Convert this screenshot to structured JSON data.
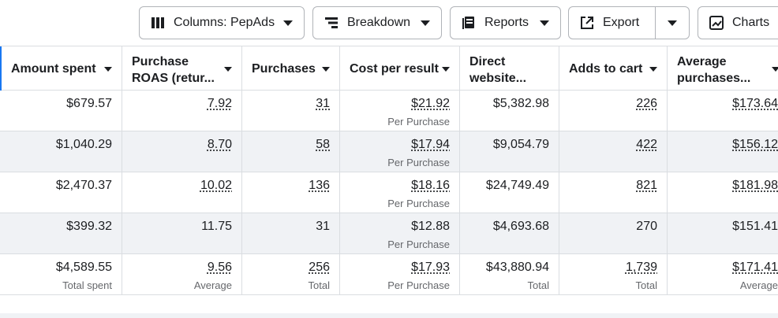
{
  "toolbar": {
    "columns_label": "Columns: PepAds",
    "breakdown_label": "Breakdown",
    "reports_label": "Reports",
    "export_label": "Export",
    "charts_label": "Charts"
  },
  "table": {
    "headers": [
      {
        "line1": "Amount spent",
        "line2": ""
      },
      {
        "line1": "Purchase",
        "line2": "ROAS (retur..."
      },
      {
        "line1": "Purchases",
        "line2": ""
      },
      {
        "line1": "Cost per result",
        "line2": ""
      },
      {
        "line1": "Direct",
        "line2": "website..."
      },
      {
        "line1": "Adds to cart",
        "line2": ""
      },
      {
        "line1": "Average",
        "line2": "purchases..."
      }
    ],
    "rows": [
      {
        "cells": [
          {
            "v": "$679.57",
            "sub": ""
          },
          {
            "v": "7.92",
            "sub": ""
          },
          {
            "v": "31",
            "sub": ""
          },
          {
            "v": "$21.92",
            "sub": "Per Purchase"
          },
          {
            "v": "$5,382.98",
            "sub": ""
          },
          {
            "v": "226",
            "sub": ""
          },
          {
            "v": "$173.64",
            "sub": ""
          }
        ]
      },
      {
        "cells": [
          {
            "v": "$1,040.29",
            "sub": ""
          },
          {
            "v": "8.70",
            "sub": ""
          },
          {
            "v": "58",
            "sub": ""
          },
          {
            "v": "$17.94",
            "sub": "Per Purchase"
          },
          {
            "v": "$9,054.79",
            "sub": ""
          },
          {
            "v": "422",
            "sub": ""
          },
          {
            "v": "$156.12",
            "sub": ""
          }
        ]
      },
      {
        "cells": [
          {
            "v": "$2,470.37",
            "sub": ""
          },
          {
            "v": "10.02",
            "sub": ""
          },
          {
            "v": "136",
            "sub": ""
          },
          {
            "v": "$18.16",
            "sub": "Per Purchase"
          },
          {
            "v": "$24,749.49",
            "sub": ""
          },
          {
            "v": "821",
            "sub": ""
          },
          {
            "v": "$181.98",
            "sub": ""
          }
        ]
      },
      {
        "cells": [
          {
            "v": "$399.32",
            "sub": ""
          },
          {
            "v": "11.75",
            "sub": ""
          },
          {
            "v": "31",
            "sub": ""
          },
          {
            "v": "$12.88",
            "sub": "Per Purchase"
          },
          {
            "v": "$4,693.68",
            "sub": ""
          },
          {
            "v": "270",
            "sub": ""
          },
          {
            "v": "$151.41",
            "sub": ""
          }
        ]
      },
      {
        "cells": [
          {
            "v": "$4,589.55",
            "sub": "Total spent"
          },
          {
            "v": "9.56",
            "sub": "Average"
          },
          {
            "v": "256",
            "sub": "Total"
          },
          {
            "v": "$17.93",
            "sub": "Per Purchase"
          },
          {
            "v": "$43,880.94",
            "sub": "Total"
          },
          {
            "v": "1,739",
            "sub": "Total"
          },
          {
            "v": "$171.41",
            "sub": "Average"
          }
        ]
      }
    ]
  },
  "colors": {
    "accent": "#1877f2",
    "border": "#dadde1",
    "alt_row": "#f0f2f5",
    "muted": "#65676b"
  }
}
